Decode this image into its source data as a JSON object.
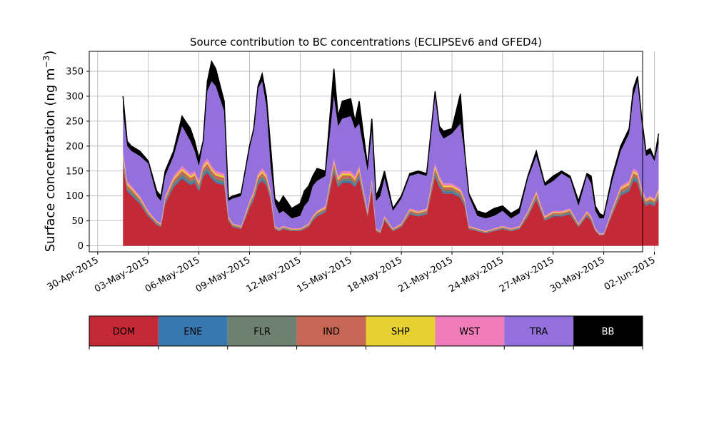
{
  "chart_data": {
    "type": "area",
    "title": "Source contribution to BC concentrations (ECLIPSEv6 and GFED4)",
    "ylabel": "Surface concentration (ng m",
    "ylabel_sup": "−3",
    "ylabel_close": ")",
    "ylim": [
      -12,
      390
    ],
    "xlim": [
      -0.5,
      32.3
    ],
    "grid": true,
    "x_start_offset": 1.5,
    "x_step": 0.125,
    "x_tick_positions": [
      0,
      3,
      6,
      9,
      12,
      15,
      18,
      21,
      24,
      27,
      30,
      33
    ],
    "x_tick_labels": [
      "30-Apr-2015",
      "03-May-2015",
      "06-May-2015",
      "09-May-2015",
      "12-May-2015",
      "15-May-2015",
      "18-May-2015",
      "21-May-2015",
      "24-May-2015",
      "27-May-2015",
      "30-May-2015",
      "02-Jun-2015"
    ],
    "y_ticks": [
      0,
      50,
      100,
      150,
      200,
      250,
      300,
      350
    ],
    "legend": [
      {
        "name": "DOM",
        "color": "#c62936",
        "text_color": "#000000"
      },
      {
        "name": "ENE",
        "color": "#3878b0",
        "text_color": "#000000"
      },
      {
        "name": "FLR",
        "color": "#6e8070",
        "text_color": "#000000"
      },
      {
        "name": "IND",
        "color": "#c86656",
        "text_color": "#000000"
      },
      {
        "name": "SHP",
        "color": "#e6d032",
        "text_color": "#000000"
      },
      {
        "name": "WST",
        "color": "#f07cba",
        "text_color": "#000000"
      },
      {
        "name": "TRA",
        "color": "#9370db",
        "text_color": "#000000"
      },
      {
        "name": "BB",
        "color": "#000000",
        "text_color": "#ffffff"
      }
    ],
    "key_totals": {
      "x": [
        1.5,
        1.75,
        2.0,
        2.5,
        3.0,
        3.5,
        3.75,
        4.0,
        4.5,
        5.0,
        5.5,
        5.75,
        6.0,
        6.25,
        6.5,
        6.75,
        7.0,
        7.5,
        7.75,
        8.0,
        8.5,
        9.0,
        9.25,
        9.5,
        9.75,
        10.0,
        10.25,
        10.5,
        10.75,
        11.0,
        11.5,
        12.0,
        12.25,
        12.5,
        12.75,
        13.0,
        13.5,
        14.0,
        14.25,
        14.5,
        15.0,
        15.25,
        15.5,
        16.0,
        16.25,
        16.5,
        16.75,
        17.0,
        17.5,
        18.0,
        18.5,
        19.0,
        19.5,
        20.0,
        20.25,
        20.5,
        21.0,
        21.5,
        21.75,
        22.0,
        22.5,
        23.0,
        23.5,
        24.0,
        24.5,
        25.0,
        25.5,
        26.0,
        26.5,
        27.0,
        27.5,
        28.0,
        28.5,
        29.0,
        29.25,
        29.5,
        29.75,
        30.0,
        30.5,
        31.0,
        31.5,
        31.75,
        32.0,
        32.25,
        32.5,
        32.75,
        33.0,
        33.25
      ],
      "total": [
        300,
        210,
        200,
        190,
        170,
        110,
        100,
        150,
        190,
        260,
        235,
        210,
        175,
        210,
        330,
        370,
        355,
        290,
        95,
        100,
        105,
        200,
        235,
        320,
        345,
        300,
        200,
        95,
        85,
        100,
        75,
        85,
        110,
        120,
        140,
        155,
        150,
        355,
        260,
        290,
        295,
        250,
        290,
        160,
        255,
        100,
        120,
        150,
        75,
        100,
        145,
        150,
        145,
        310,
        240,
        230,
        235,
        305,
        190,
        105,
        70,
        65,
        75,
        80,
        65,
        75,
        140,
        190,
        125,
        140,
        150,
        140,
        90,
        145,
        140,
        80,
        65,
        60,
        140,
        200,
        235,
        315,
        340,
        255,
        190,
        195,
        175,
        225
      ],
      "tra_top": [
        270,
        200,
        190,
        180,
        165,
        100,
        90,
        140,
        180,
        240,
        210,
        190,
        160,
        205,
        310,
        330,
        320,
        270,
        90,
        95,
        100,
        195,
        230,
        315,
        330,
        280,
        160,
        85,
        65,
        70,
        55,
        60,
        80,
        90,
        120,
        130,
        140,
        300,
        240,
        255,
        260,
        235,
        245,
        150,
        230,
        90,
        100,
        135,
        70,
        95,
        140,
        145,
        140,
        300,
        230,
        215,
        225,
        245,
        185,
        100,
        60,
        55,
        60,
        70,
        55,
        65,
        135,
        180,
        120,
        130,
        145,
        135,
        80,
        140,
        125,
        70,
        55,
        55,
        130,
        190,
        225,
        300,
        330,
        245,
        180,
        185,
        170,
        205
      ],
      "stack_top": [
        190,
        130,
        120,
        100,
        70,
        50,
        45,
        100,
        140,
        160,
        145,
        150,
        130,
        165,
        175,
        160,
        150,
        145,
        60,
        45,
        40,
        90,
        110,
        145,
        155,
        145,
        110,
        40,
        35,
        40,
        35,
        35,
        40,
        45,
        60,
        70,
        80,
        175,
        140,
        150,
        150,
        140,
        160,
        70,
        135,
        35,
        30,
        60,
        35,
        45,
        75,
        70,
        75,
        165,
        140,
        125,
        125,
        115,
        95,
        40,
        35,
        30,
        35,
        40,
        35,
        40,
        70,
        110,
        60,
        70,
        70,
        75,
        45,
        70,
        60,
        35,
        25,
        25,
        75,
        120,
        130,
        155,
        150,
        115,
        95,
        100,
        95,
        115
      ]
    }
  }
}
